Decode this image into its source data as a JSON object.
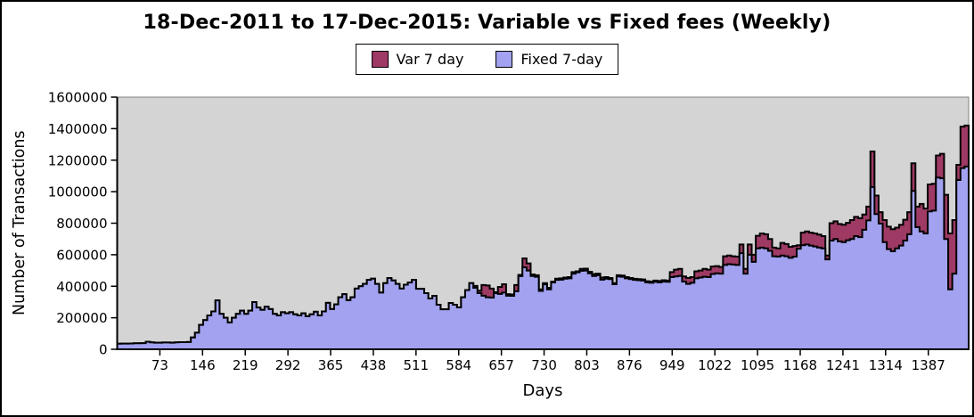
{
  "window": {
    "background": "#ffffff",
    "border_color": "#000000"
  },
  "title": "18-Dec-2011 to 17-Dec-2015: Variable vs Fixed fees (Weekly)",
  "legend": {
    "position": "top-center",
    "items": [
      {
        "label": "Var 7 day",
        "color": "#9e3a64"
      },
      {
        "label": "Fixed 7-day",
        "color": "#a2a2f0"
      }
    ]
  },
  "axis_labels": {
    "x": "Days",
    "y": "Number of Transactions"
  },
  "chart_data": {
    "type": "area",
    "subtype": "step-area-overlaid",
    "title": "18-Dec-2011 to 17-Dec-2015: Variable vs Fixed fees (Weekly)",
    "xlabel": "Days",
    "ylabel": "Number of Transactions",
    "xlim": [
      0,
      1456
    ],
    "ylim": [
      0,
      1600000
    ],
    "x_ticks": [
      73,
      146,
      219,
      292,
      365,
      438,
      511,
      584,
      657,
      730,
      803,
      876,
      949,
      1022,
      1095,
      1168,
      1241,
      1314,
      1387
    ],
    "y_ticks": [
      0,
      200000,
      400000,
      600000,
      800000,
      1000000,
      1200000,
      1400000,
      1600000
    ],
    "grid": false,
    "legend_position": "top-center",
    "plot_background": "#d4d4d4",
    "plot_outline_color": "#7f7f7f",
    "outline_color": "#000000",
    "x_unit": "days",
    "x_day_step": 7,
    "sampling_note": "weekly steps; value i spans days 7(i-1) to 7i; values estimated from pixels",
    "series": [
      {
        "name": "Var 7 day",
        "color": "#9e3a64",
        "draw_order": "behind",
        "values": [
          35000,
          36000,
          36000,
          37000,
          38000,
          38000,
          39000,
          48000,
          44000,
          42000,
          42000,
          43000,
          43000,
          42000,
          44000,
          45000,
          45000,
          46000,
          75000,
          105000,
          155000,
          185000,
          215000,
          240000,
          310000,
          225000,
          200000,
          170000,
          200000,
          225000,
          245000,
          225000,
          245000,
          300000,
          265000,
          250000,
          270000,
          255000,
          225000,
          215000,
          235000,
          228000,
          235000,
          222000,
          215000,
          228000,
          210000,
          222000,
          238000,
          215000,
          240000,
          295000,
          255000,
          285000,
          330000,
          350000,
          312000,
          330000,
          385000,
          400000,
          415000,
          440000,
          448000,
          415000,
          360000,
          420000,
          452000,
          437000,
          415000,
          385000,
          410000,
          424000,
          441000,
          384000,
          384000,
          356000,
          322000,
          339000,
          283000,
          254000,
          254000,
          294000,
          283000,
          266000,
          330000,
          375000,
          420000,
          402000,
          372000,
          408000,
          405000,
          385000,
          362000,
          396000,
          413000,
          350000,
          348000,
          408000,
          472000,
          577000,
          545000,
          475000,
          470000,
          380000,
          420000,
          390000,
          430000,
          448000,
          450000,
          455000,
          458000,
          490000,
          495000,
          510000,
          512000,
          492000,
          478000,
          480000,
          455000,
          458000,
          452000,
          420000,
          470000,
          468000,
          458000,
          452000,
          447000,
          445000,
          443000,
          432000,
          430000,
          436000,
          433000,
          438000,
          436000,
          490000,
          505000,
          510000,
          462000,
          452000,
          458000,
          495000,
          500000,
          510000,
          505000,
          525000,
          528000,
          522000,
          590000,
          595000,
          590000,
          588000,
          665000,
          510000,
          665000,
          600000,
          720000,
          735000,
          730000,
          700000,
          645000,
          640000,
          675000,
          668000,
          650000,
          655000,
          660000,
          740000,
          748000,
          740000,
          735000,
          728000,
          718000,
          595000,
          800000,
          812000,
          795000,
          790000,
          802000,
          820000,
          840000,
          832000,
          855000,
          905000,
          1255000,
          975000,
          870000,
          820000,
          778000,
          762000,
          772000,
          790000,
          822000,
          870000,
          1180000,
          905000,
          922000,
          893000,
          1046000,
          1050000,
          1230000,
          1240000,
          980000,
          735000,
          820000,
          1170000,
          1413000,
          1420000
        ]
      },
      {
        "name": "Fixed 7-day",
        "color": "#a2a2f0",
        "draw_order": "front",
        "values": [
          35000,
          36000,
          36000,
          37000,
          38000,
          38000,
          39000,
          48000,
          44000,
          42000,
          42000,
          43000,
          43000,
          42000,
          44000,
          45000,
          45000,
          46000,
          75000,
          105000,
          155000,
          185000,
          215000,
          240000,
          310000,
          225000,
          200000,
          170000,
          200000,
          225000,
          245000,
          225000,
          245000,
          300000,
          265000,
          250000,
          270000,
          255000,
          225000,
          215000,
          235000,
          228000,
          235000,
          222000,
          215000,
          228000,
          210000,
          222000,
          238000,
          215000,
          240000,
          295000,
          255000,
          285000,
          330000,
          350000,
          312000,
          330000,
          385000,
          400000,
          415000,
          440000,
          448000,
          415000,
          360000,
          420000,
          452000,
          437000,
          415000,
          385000,
          410000,
          424000,
          441000,
          384000,
          384000,
          356000,
          322000,
          339000,
          283000,
          254000,
          254000,
          294000,
          283000,
          266000,
          330000,
          375000,
          420000,
          390000,
          356000,
          340000,
          330000,
          328000,
          356000,
          351000,
          360000,
          340000,
          339000,
          368000,
          464000,
          520000,
          500000,
          465000,
          460000,
          370000,
          412000,
          380000,
          424000,
          440000,
          442000,
          448000,
          450000,
          480000,
          488000,
          498000,
          500000,
          482000,
          465000,
          470000,
          442000,
          448000,
          445000,
          413000,
          462000,
          460000,
          450000,
          445000,
          440000,
          438000,
          436000,
          425000,
          422000,
          428000,
          425000,
          430000,
          428000,
          458000,
          462000,
          466000,
          430000,
          415000,
          422000,
          450000,
          455000,
          460000,
          458000,
          478000,
          482000,
          480000,
          535000,
          540000,
          538000,
          535000,
          610000,
          480000,
          600000,
          555000,
          640000,
          645000,
          640000,
          625000,
          590000,
          588000,
          595000,
          590000,
          580000,
          588000,
          638000,
          660000,
          665000,
          658000,
          652000,
          645000,
          640000,
          570000,
          690000,
          700000,
          685000,
          680000,
          692000,
          700000,
          718000,
          712000,
          758000,
          818000,
          1030000,
          858000,
          798000,
          680000,
          635000,
          622000,
          640000,
          658000,
          690000,
          730000,
          1005000,
          775000,
          748000,
          735000,
          875000,
          880000,
          1090000,
          1085000,
          700000,
          380000,
          480000,
          1074000,
          1150000,
          1160000
        ]
      }
    ]
  }
}
